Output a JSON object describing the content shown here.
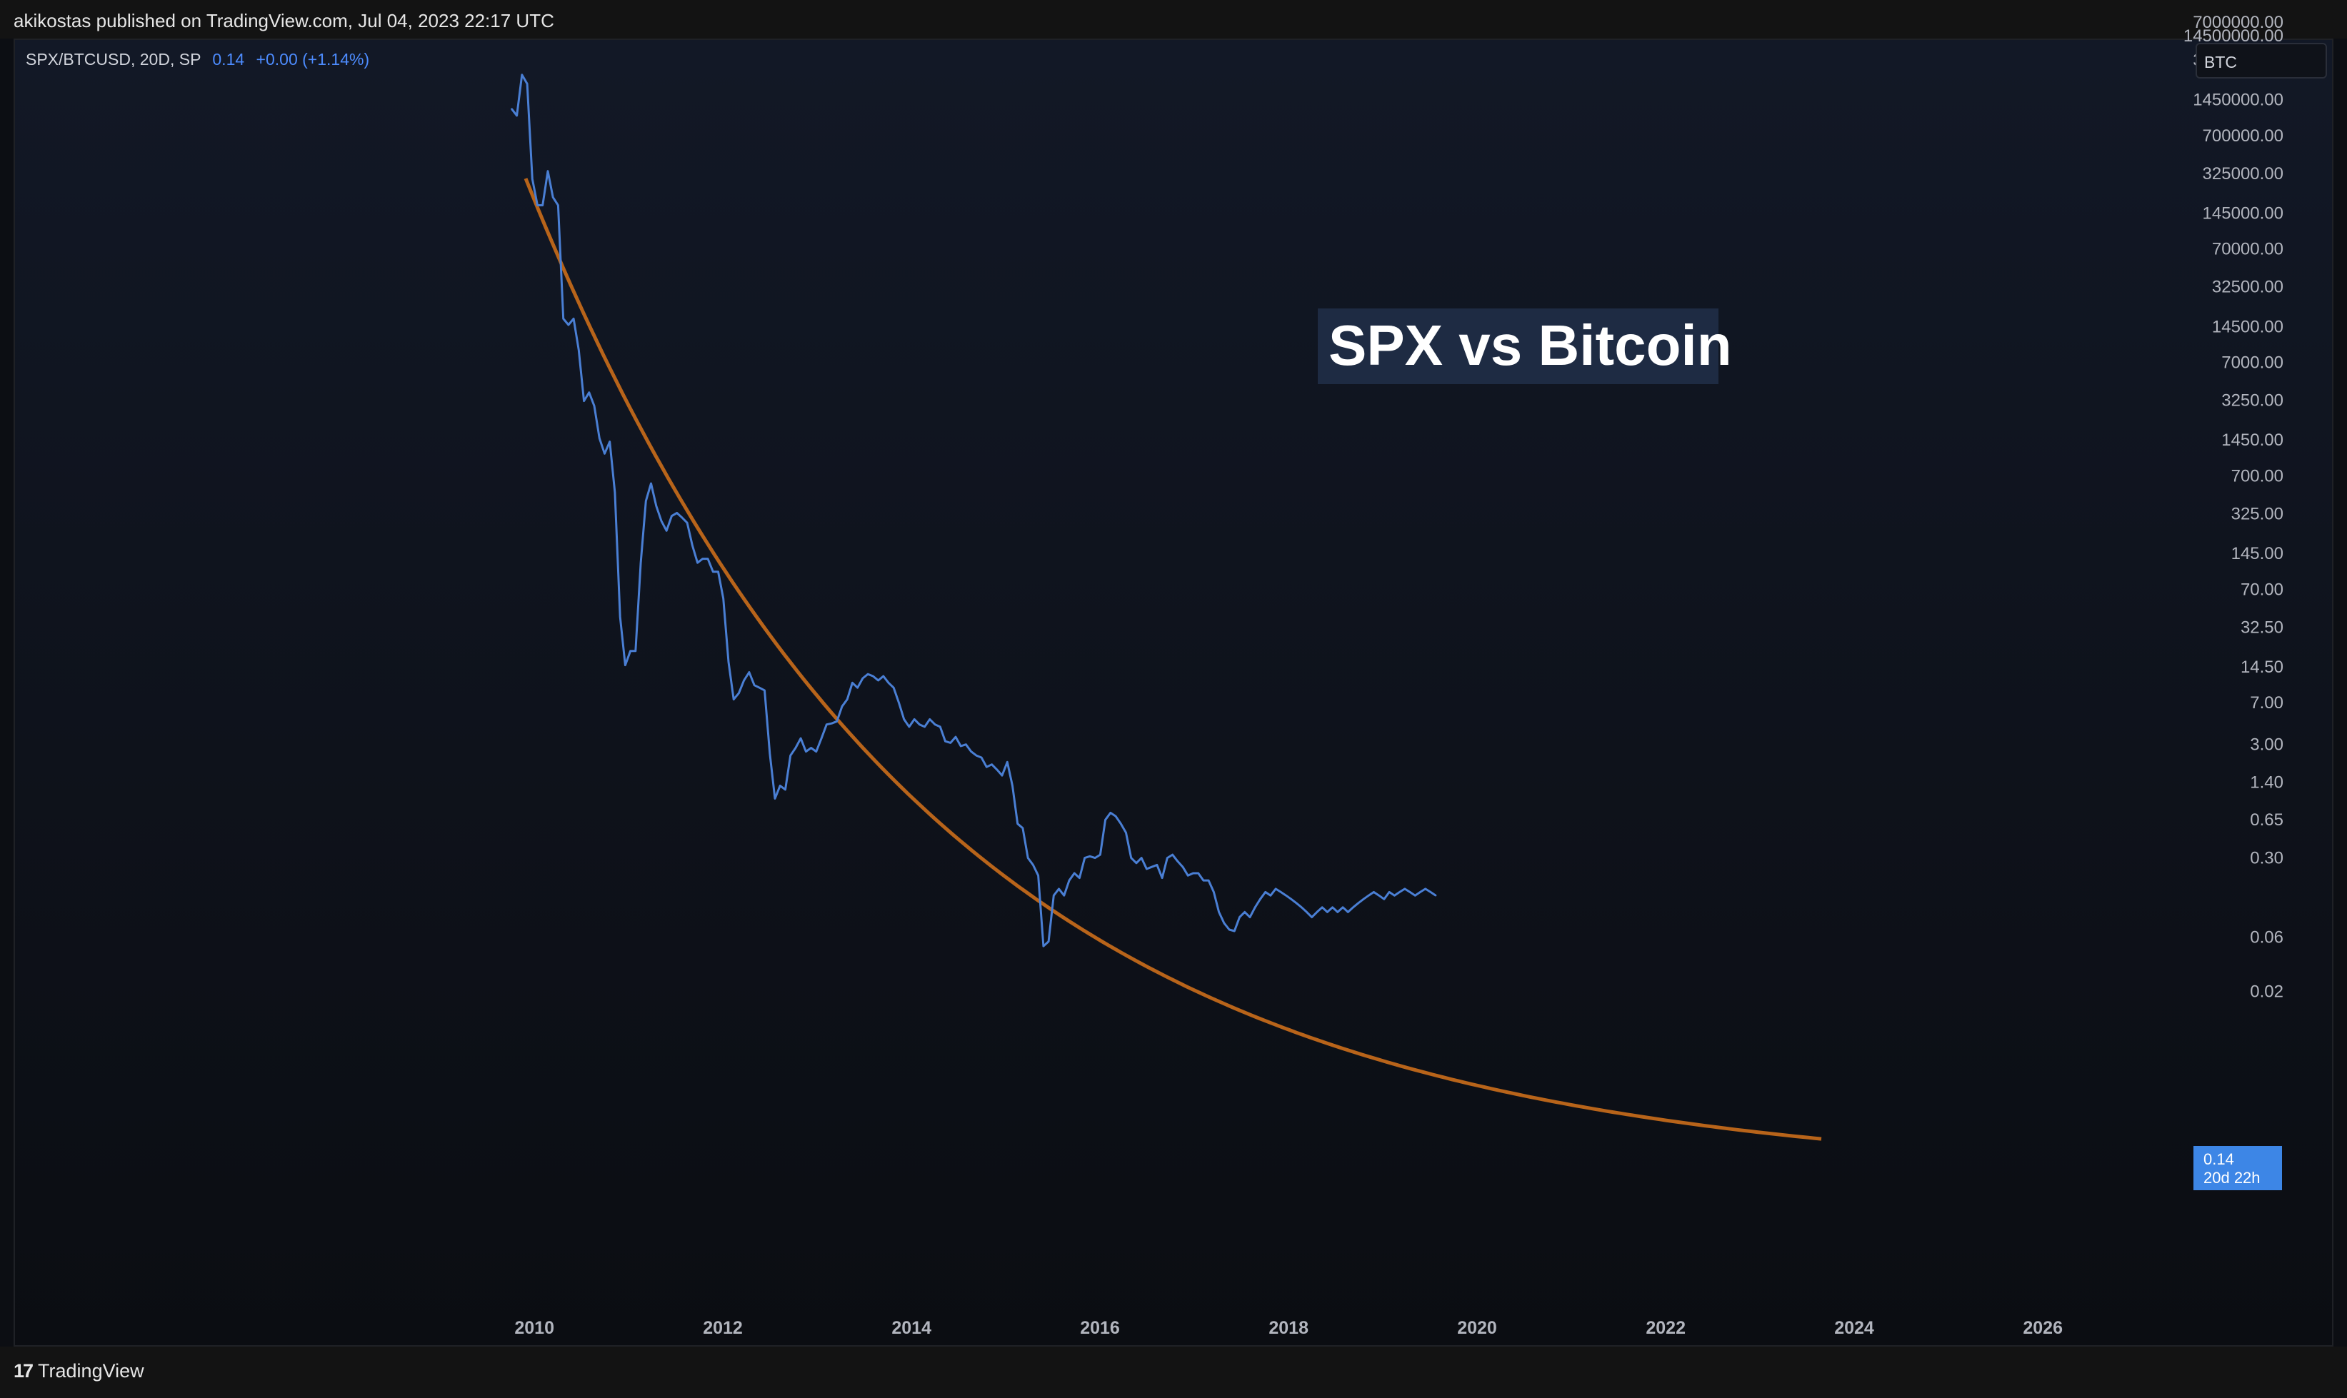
{
  "header": {
    "text": "akikostas published on TradingView.com, Jul 04, 2023 22:17 UTC"
  },
  "legend": {
    "symbol": "SPX/BTCUSD, 20D, SP",
    "value": "0.14",
    "change": "+0.00 (+1.14%)"
  },
  "currency_label": "BTC",
  "price_tag": {
    "value": "0.14",
    "countdown": "20d 22h"
  },
  "footer": {
    "logo_mark": "17",
    "logo_text": "TradingView"
  },
  "colors": {
    "series": "#4a7fd4",
    "trend": "#b8641a",
    "background": "#0c0e13",
    "title_box": "#1e2b43",
    "price_tag": "#3d86e6"
  },
  "chart_data": {
    "type": "line",
    "title": "SPX vs Bitcoin",
    "y_scale": "log",
    "y_ticks": [
      "14500000.00",
      "7000000.00",
      "3250000.00",
      "1450000.00",
      "700000.00",
      "325000.00",
      "145000.00",
      "70000.00",
      "32500.00",
      "14500.00",
      "7000.00",
      "3250.00",
      "1450.00",
      "700.00",
      "325.00",
      "145.00",
      "70.00",
      "32.50",
      "14.50",
      "7.00",
      "3.00",
      "1.40",
      "0.65",
      "0.30",
      "0.06",
      "0.02"
    ],
    "x_ticks": [
      "2010",
      "2012",
      "2014",
      "2016",
      "2018",
      "2020",
      "2022",
      "2024",
      "2026"
    ],
    "series": [
      {
        "values": [
          {
            "x": "2009-10-05",
            "y": 1200000
          },
          {
            "x": "2009-10-25",
            "y": 1050000
          },
          {
            "x": "2009-11-14",
            "y": 2400000
          },
          {
            "x": "2009-12-04",
            "y": 2000000
          },
          {
            "x": "2009-12-24",
            "y": 290000
          },
          {
            "x": "2010-01-13",
            "y": 170000
          },
          {
            "x": "2010-02-02",
            "y": 170000
          },
          {
            "x": "2010-02-22",
            "y": 340000
          },
          {
            "x": "2010-03-14",
            "y": 200000
          },
          {
            "x": "2010-04-03",
            "y": 170000
          },
          {
            "x": "2010-04-23",
            "y": 17000
          },
          {
            "x": "2010-05-13",
            "y": 15000
          },
          {
            "x": "2010-06-02",
            "y": 17000
          },
          {
            "x": "2010-06-22",
            "y": 9000
          },
          {
            "x": "2010-07-12",
            "y": 3200
          },
          {
            "x": "2010-08-01",
            "y": 3800
          },
          {
            "x": "2010-08-21",
            "y": 2900
          },
          {
            "x": "2010-09-10",
            "y": 1500
          },
          {
            "x": "2010-09-30",
            "y": 1100
          },
          {
            "x": "2010-10-20",
            "y": 1400
          },
          {
            "x": "2010-11-09",
            "y": 500
          },
          {
            "x": "2010-11-29",
            "y": 40
          },
          {
            "x": "2010-12-19",
            "y": 15
          },
          {
            "x": "2011-01-08",
            "y": 20
          },
          {
            "x": "2011-01-28",
            "y": 20
          },
          {
            "x": "2011-02-17",
            "y": 120
          },
          {
            "x": "2011-03-09",
            "y": 420
          },
          {
            "x": "2011-03-29",
            "y": 600
          },
          {
            "x": "2011-04-18",
            "y": 380
          },
          {
            "x": "2011-05-08",
            "y": 280
          },
          {
            "x": "2011-05-28",
            "y": 230
          },
          {
            "x": "2011-06-17",
            "y": 310
          },
          {
            "x": "2011-07-07",
            "y": 330
          },
          {
            "x": "2011-07-27",
            "y": 300
          },
          {
            "x": "2011-08-16",
            "y": 270
          },
          {
            "x": "2011-09-05",
            "y": 170
          },
          {
            "x": "2011-09-25",
            "y": 120
          },
          {
            "x": "2011-10-15",
            "y": 130
          },
          {
            "x": "2011-11-04",
            "y": 130
          },
          {
            "x": "2011-11-24",
            "y": 100
          },
          {
            "x": "2011-12-14",
            "y": 100
          },
          {
            "x": "2012-01-03",
            "y": 58
          },
          {
            "x": "2012-01-23",
            "y": 16
          },
          {
            "x": "2012-02-12",
            "y": 7.5
          },
          {
            "x": "2012-03-03",
            "y": 8.5
          },
          {
            "x": "2012-03-23",
            "y": 11
          },
          {
            "x": "2012-04-12",
            "y": 13
          },
          {
            "x": "2012-05-02",
            "y": 10
          },
          {
            "x": "2012-05-22",
            "y": 9.5
          },
          {
            "x": "2012-06-11",
            "y": 9
          },
          {
            "x": "2012-07-01",
            "y": 2.5
          },
          {
            "x": "2012-07-21",
            "y": 1.0
          },
          {
            "x": "2012-08-10",
            "y": 1.3
          },
          {
            "x": "2012-08-30",
            "y": 1.2
          },
          {
            "x": "2012-09-19",
            "y": 2.4
          },
          {
            "x": "2012-10-09",
            "y": 2.8
          },
          {
            "x": "2012-10-29",
            "y": 3.4
          },
          {
            "x": "2012-11-18",
            "y": 2.6
          },
          {
            "x": "2012-12-08",
            "y": 2.8
          },
          {
            "x": "2012-12-28",
            "y": 2.6
          },
          {
            "x": "2013-01-17",
            "y": 3.4
          },
          {
            "x": "2013-02-06",
            "y": 4.5
          },
          {
            "x": "2013-02-26",
            "y": 4.6
          },
          {
            "x": "2013-03-18",
            "y": 4.8
          },
          {
            "x": "2013-04-07",
            "y": 6.5
          },
          {
            "x": "2013-04-27",
            "y": 7.5
          },
          {
            "x": "2013-05-17",
            "y": 10.5
          },
          {
            "x": "2013-06-06",
            "y": 9.5
          },
          {
            "x": "2013-06-26",
            "y": 11.5
          },
          {
            "x": "2013-07-16",
            "y": 12.5
          },
          {
            "x": "2013-08-05",
            "y": 12.0
          },
          {
            "x": "2013-08-25",
            "y": 11.0
          },
          {
            "x": "2013-09-14",
            "y": 12.0
          },
          {
            "x": "2013-10-04",
            "y": 10.5
          },
          {
            "x": "2013-10-24",
            "y": 9.5
          },
          {
            "x": "2013-11-13",
            "y": 7.0
          },
          {
            "x": "2013-12-03",
            "y": 5.0
          },
          {
            "x": "2013-12-23",
            "y": 4.3
          },
          {
            "x": "2014-01-12",
            "y": 5.0
          },
          {
            "x": "2014-02-01",
            "y": 4.5
          },
          {
            "x": "2014-02-21",
            "y": 4.3
          },
          {
            "x": "2014-03-13",
            "y": 5.0
          },
          {
            "x": "2014-04-02",
            "y": 4.5
          },
          {
            "x": "2014-04-22",
            "y": 4.3
          },
          {
            "x": "2014-05-12",
            "y": 3.2
          },
          {
            "x": "2014-06-01",
            "y": 3.1
          },
          {
            "x": "2014-06-21",
            "y": 3.5
          },
          {
            "x": "2014-07-11",
            "y": 2.9
          },
          {
            "x": "2014-07-31",
            "y": 3.0
          },
          {
            "x": "2014-08-20",
            "y": 2.6
          },
          {
            "x": "2014-09-09",
            "y": 2.4
          },
          {
            "x": "2014-09-29",
            "y": 2.3
          },
          {
            "x": "2014-10-19",
            "y": 1.9
          },
          {
            "x": "2014-11-08",
            "y": 2.0
          },
          {
            "x": "2014-11-28",
            "y": 1.8
          },
          {
            "x": "2014-12-18",
            "y": 1.6
          },
          {
            "x": "2015-01-07",
            "y": 2.1
          },
          {
            "x": "2015-01-27",
            "y": 1.3
          },
          {
            "x": "2015-02-16",
            "y": 0.6
          },
          {
            "x": "2015-03-08",
            "y": 0.55
          },
          {
            "x": "2015-03-28",
            "y": 0.3
          },
          {
            "x": "2015-04-17",
            "y": 0.26
          },
          {
            "x": "2015-05-07",
            "y": 0.21
          },
          {
            "x": "2015-05-27",
            "y": 0.05
          },
          {
            "x": "2015-06-16",
            "y": 0.055
          },
          {
            "x": "2015-07-06",
            "y": 0.14
          },
          {
            "x": "2015-07-26",
            "y": 0.16
          },
          {
            "x": "2015-08-15",
            "y": 0.14
          },
          {
            "x": "2015-09-04",
            "y": 0.19
          },
          {
            "x": "2015-09-24",
            "y": 0.22
          },
          {
            "x": "2015-10-14",
            "y": 0.2
          },
          {
            "x": "2015-11-03",
            "y": 0.3
          },
          {
            "x": "2015-11-23",
            "y": 0.31
          },
          {
            "x": "2015-12-13",
            "y": 0.3
          },
          {
            "x": "2016-01-02",
            "y": 0.32
          },
          {
            "x": "2016-01-22",
            "y": 0.65
          },
          {
            "x": "2016-02-11",
            "y": 0.75
          },
          {
            "x": "2016-03-02",
            "y": 0.7
          },
          {
            "x": "2016-03-22",
            "y": 0.6
          },
          {
            "x": "2016-04-11",
            "y": 0.5
          },
          {
            "x": "2016-05-01",
            "y": 0.3
          },
          {
            "x": "2016-05-21",
            "y": 0.27
          },
          {
            "x": "2016-06-10",
            "y": 0.3
          },
          {
            "x": "2016-06-30",
            "y": 0.24
          },
          {
            "x": "2016-07-20",
            "y": 0.25
          },
          {
            "x": "2016-08-09",
            "y": 0.26
          },
          {
            "x": "2016-08-29",
            "y": 0.2
          },
          {
            "x": "2016-09-18",
            "y": 0.3
          },
          {
            "x": "2016-10-08",
            "y": 0.32
          },
          {
            "x": "2016-10-28",
            "y": 0.28
          },
          {
            "x": "2016-11-17",
            "y": 0.25
          },
          {
            "x": "2016-12-07",
            "y": 0.21
          },
          {
            "x": "2016-12-27",
            "y": 0.22
          },
          {
            "x": "2017-01-16",
            "y": 0.22
          },
          {
            "x": "2017-02-05",
            "y": 0.19
          },
          {
            "x": "2017-02-25",
            "y": 0.19
          },
          {
            "x": "2017-03-17",
            "y": 0.15
          },
          {
            "x": "2017-04-06",
            "y": 0.1
          },
          {
            "x": "2017-04-26",
            "y": 0.08
          },
          {
            "x": "2017-05-16",
            "y": 0.07
          },
          {
            "x": "2017-06-05",
            "y": 0.068
          },
          {
            "x": "2017-06-25",
            "y": 0.09
          },
          {
            "x": "2017-07-15",
            "y": 0.1
          },
          {
            "x": "2017-08-04",
            "y": 0.09
          },
          {
            "x": "2017-08-24",
            "y": 0.11
          },
          {
            "x": "2017-09-13",
            "y": 0.13
          },
          {
            "x": "2017-10-03",
            "y": 0.15
          },
          {
            "x": "2017-10-23",
            "y": 0.14
          },
          {
            "x": "2017-11-12",
            "y": 0.16
          },
          {
            "x": "2017-12-02",
            "y": 0.15
          },
          {
            "x": "2017-12-22",
            "y": 0.14
          },
          {
            "x": "2018-01-11",
            "y": 0.13
          },
          {
            "x": "2018-01-31",
            "y": 0.12
          },
          {
            "x": "2018-02-20",
            "y": 0.11
          },
          {
            "x": "2018-03-12",
            "y": 0.1
          },
          {
            "x": "2018-04-01",
            "y": 0.09
          },
          {
            "x": "2018-04-21",
            "y": 0.1
          },
          {
            "x": "2018-05-11",
            "y": 0.11
          },
          {
            "x": "2018-05-31",
            "y": 0.1
          },
          {
            "x": "2018-06-20",
            "y": 0.11
          },
          {
            "x": "2018-07-10",
            "y": 0.1
          },
          {
            "x": "2018-07-30",
            "y": 0.11
          },
          {
            "x": "2018-08-19",
            "y": 0.1
          },
          {
            "x": "2018-09-08",
            "y": 0.11
          },
          {
            "x": "2018-09-28",
            "y": 0.12
          },
          {
            "x": "2018-10-18",
            "y": 0.13
          },
          {
            "x": "2018-11-07",
            "y": 0.14
          },
          {
            "x": "2018-11-27",
            "y": 0.15
          },
          {
            "x": "2018-12-17",
            "y": 0.14
          },
          {
            "x": "2019-01-06",
            "y": 0.13
          },
          {
            "x": "2019-01-26",
            "y": 0.15
          },
          {
            "x": "2019-02-15",
            "y": 0.14
          },
          {
            "x": "2019-03-07",
            "y": 0.15
          },
          {
            "x": "2019-03-27",
            "y": 0.16
          },
          {
            "x": "2019-04-16",
            "y": 0.15
          },
          {
            "x": "2019-05-06",
            "y": 0.14
          },
          {
            "x": "2019-05-26",
            "y": 0.15
          },
          {
            "x": "2019-06-15",
            "y": 0.16
          },
          {
            "x": "2019-07-05",
            "y": 0.15
          },
          {
            "x": "2019-07-25",
            "y": 0.14
          }
        ]
      }
    ]
  }
}
